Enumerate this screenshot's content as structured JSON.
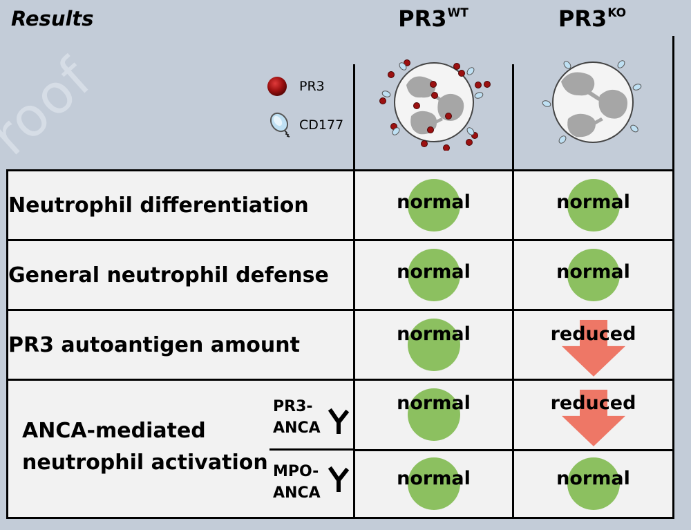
{
  "header": {
    "title": "Results",
    "col1_base": "PR3",
    "col1_sup": "WT",
    "col2_base": "PR3",
    "col2_sup": "KO"
  },
  "legend": {
    "pr3_label": "PR3",
    "cd177_label": "CD177"
  },
  "rows": [
    {
      "label": "Neutrophil differentiation",
      "wt": "normal",
      "ko": "normal",
      "ko_marker": "circle"
    },
    {
      "label": "General neutrophil defense",
      "wt": "normal",
      "ko": "normal",
      "ko_marker": "circle"
    },
    {
      "label": "PR3 autoantigen amount",
      "wt": "normal",
      "ko": "reduced",
      "ko_marker": "arrow"
    }
  ],
  "anca": {
    "label_line1": "ANCA-mediated",
    "label_line2": "neutrophil activation",
    "sub": [
      {
        "line1": "PR3-",
        "line2": "ANCA",
        "wt": "normal",
        "ko": "reduced",
        "ko_marker": "arrow"
      },
      {
        "line1": "MPO-",
        "line2": "ANCA",
        "wt": "normal",
        "ko": "normal",
        "ko_marker": "circle"
      }
    ]
  },
  "colors": {
    "background": "#c3ccd8",
    "table_fill": "#f2f2f2",
    "normal_circle": "#8cc060",
    "reduced_arrow": "#ee7766",
    "pr3_dot": "#9b1010",
    "cd177": "#bfe0f3"
  },
  "watermark": "roof"
}
